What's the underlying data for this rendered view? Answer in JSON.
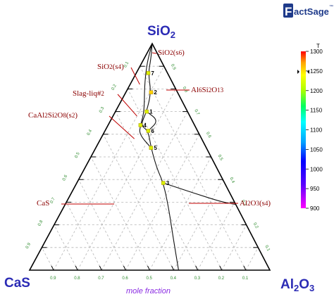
{
  "logo": {
    "text": "FactSage",
    "mark": "™"
  },
  "chart_data": {
    "type": "ternary",
    "title": "",
    "vertices": {
      "top": "SiO2",
      "left": "CaS",
      "right": "Al2O3"
    },
    "xlabel": "mole fraction",
    "tick_labels": [
      "0.1",
      "0.2",
      "0.3",
      "0.4",
      "0.5",
      "0.6",
      "0.7",
      "0.8",
      "0.9"
    ],
    "colorbar": {
      "label": "T",
      "ticks": [
        900,
        950,
        1000,
        1050,
        1100,
        1150,
        1200,
        1250,
        1300
      ],
      "range": [
        900,
        1300
      ]
    },
    "phase_labels": [
      {
        "id": "sio2-s6",
        "text": "SiO2(s6)",
        "target": [
          0.88,
          0.11,
          0.01
        ]
      },
      {
        "id": "sio2-s4",
        "text": "SiO2(s4)",
        "target": [
          0.82,
          0.14,
          0.04
        ]
      },
      {
        "id": "al6si2o13",
        "text": "Al6Si2O13",
        "target": [
          0.7,
          0.09,
          0.21
        ]
      },
      {
        "id": "slag-liq2",
        "text": "Slag-liq#2",
        "target": [
          0.68,
          0.22,
          0.1
        ]
      },
      {
        "id": "caal2si2o8",
        "text": "CaAl2Si2O8(s2)",
        "target": [
          0.58,
          0.28,
          0.14
        ]
      },
      {
        "id": "cas",
        "text": "CaS",
        "target": [
          0.3,
          0.48,
          0.22
        ]
      },
      {
        "id": "al2o3-s4",
        "text": "Al2O3(s4)",
        "target": [
          0.31,
          0.02,
          0.67
        ]
      }
    ],
    "invariant_points": [
      {
        "label": "1",
        "T": 1230,
        "composition": [
          0.7,
          0.17,
          0.13
        ]
      },
      {
        "label": "2",
        "T": 1250,
        "composition": [
          0.785,
          0.11,
          0.105
        ]
      },
      {
        "label": "3",
        "T": 1210,
        "composition": [
          0.385,
          0.255,
          0.36
        ]
      },
      {
        "label": "4",
        "T": 1240,
        "composition": [
          0.64,
          0.225,
          0.135
        ]
      },
      {
        "label": "5",
        "T": 1220,
        "composition": [
          0.54,
          0.23,
          0.23
        ]
      },
      {
        "label": "6",
        "T": 1225,
        "composition": [
          0.615,
          0.205,
          0.18
        ]
      },
      {
        "label": "7",
        "T": 1240,
        "composition": [
          0.87,
          0.08,
          0.05
        ]
      }
    ],
    "univariant_lines": [
      {
        "from": "SiO2",
        "points": [
          [
            1,
            0,
            0
          ],
          [
            0.93,
            0.04,
            0.03
          ],
          [
            0.87,
            0.08,
            0.05
          ],
          [
            0.785,
            0.11,
            0.105
          ],
          [
            0.7,
            0.17,
            0.13
          ],
          [
            0.64,
            0.225,
            0.135
          ],
          [
            0.615,
            0.205,
            0.18
          ],
          [
            0.54,
            0.23,
            0.23
          ],
          [
            0.45,
            0.25,
            0.3
          ],
          [
            0.385,
            0.255,
            0.36
          ],
          [
            0.28,
            0.285,
            0.435
          ],
          [
            0.15,
            0.33,
            0.52
          ],
          [
            0.0,
            0.38,
            0.62
          ]
        ]
      },
      {
        "from": "SiO2-left",
        "points": [
          [
            1,
            0,
            0
          ],
          [
            0.92,
            0.06,
            0.02
          ],
          [
            0.82,
            0.12,
            0.06
          ],
          [
            0.7,
            0.18,
            0.12
          ],
          [
            0.64,
            0.225,
            0.135
          ],
          [
            0.6,
            0.25,
            0.15
          ],
          [
            0.54,
            0.23,
            0.23
          ]
        ]
      },
      {
        "from": "3-right",
        "points": [
          [
            0.385,
            0.255,
            0.36
          ],
          [
            0.34,
            0.15,
            0.51
          ],
          [
            0.3,
            0.05,
            0.65
          ],
          [
            0.29,
            0.0,
            0.71
          ]
        ]
      },
      {
        "from": "small-loop",
        "points": [
          [
            0.7,
            0.17,
            0.13
          ],
          [
            0.66,
            0.14,
            0.2
          ],
          [
            0.615,
            0.205,
            0.18
          ]
        ]
      }
    ]
  }
}
